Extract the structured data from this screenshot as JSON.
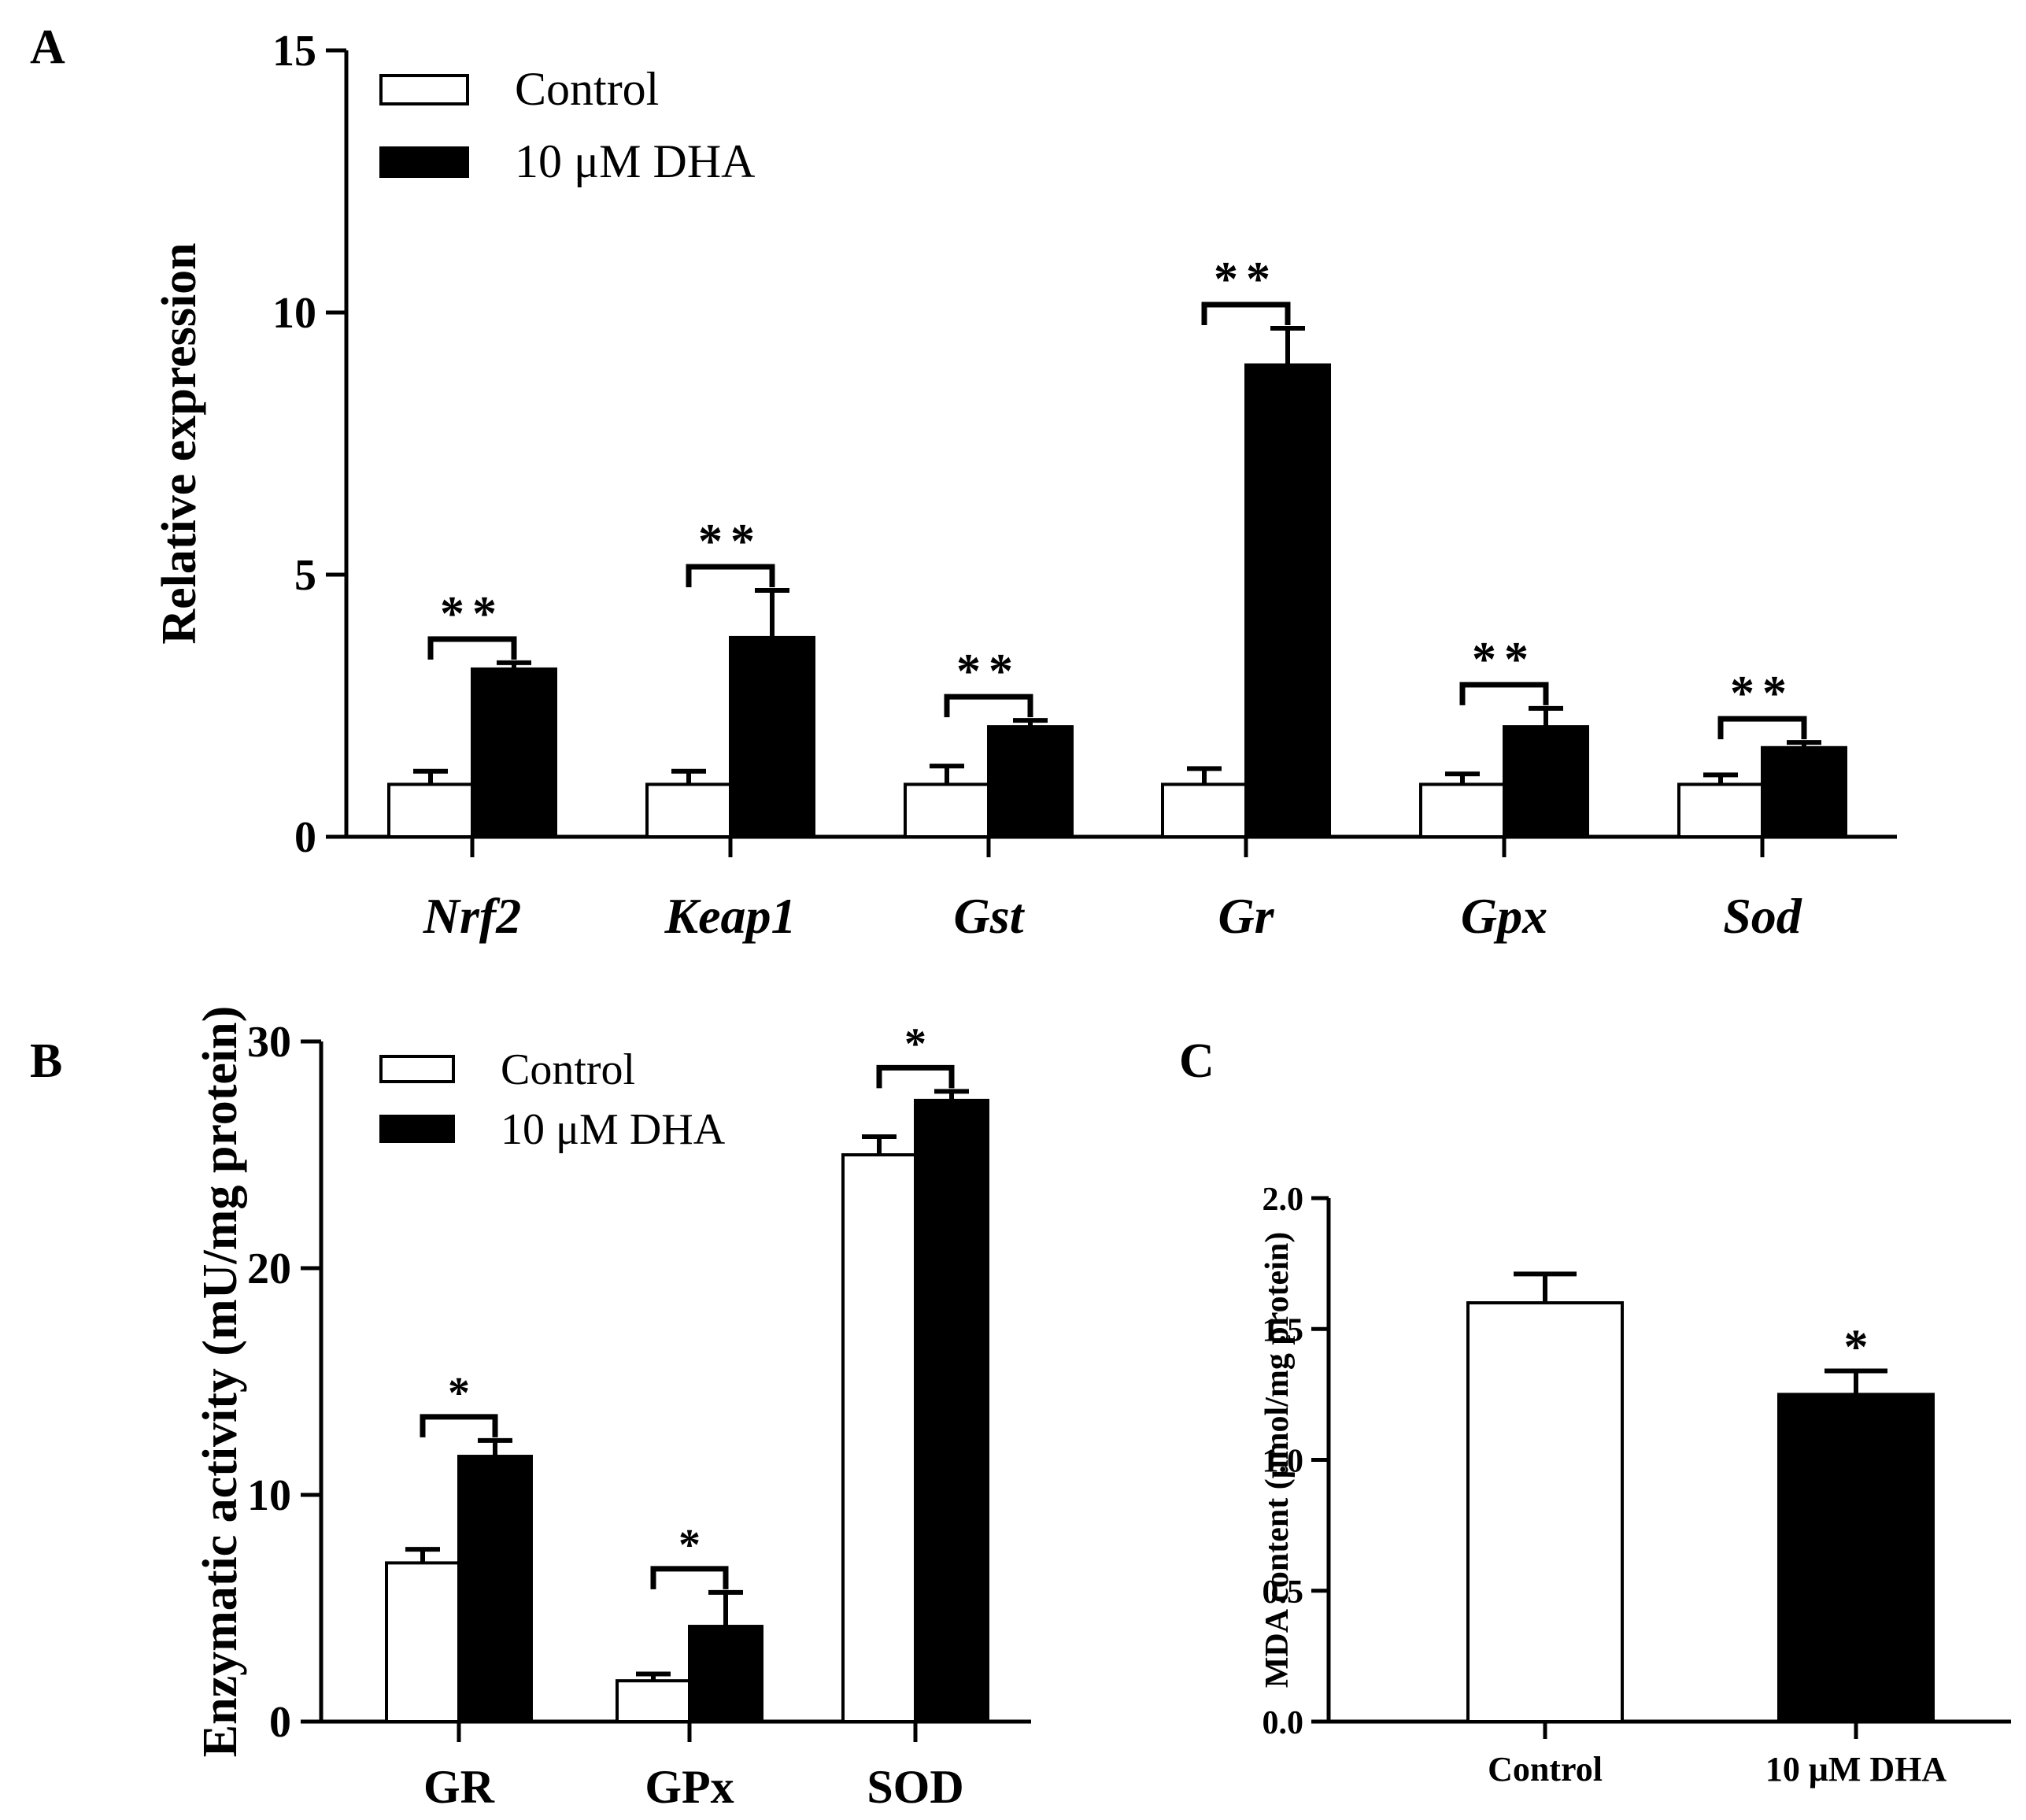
{
  "chart_data": [
    {
      "panel": "A",
      "type": "bar",
      "ylabel": "Relative expression",
      "ylim": [
        0,
        15
      ],
      "yticks": [
        0,
        5,
        10,
        15
      ],
      "categories": [
        "Nrf2",
        "Keap1",
        "Gst",
        "Gr",
        "Gpx",
        "Sod"
      ],
      "series": [
        {
          "name": "Control",
          "color": "#ffffff",
          "values": [
            1.0,
            1.0,
            1.0,
            1.0,
            1.0,
            1.0
          ],
          "errors": [
            0.25,
            0.25,
            0.35,
            0.3,
            0.2,
            0.18
          ]
        },
        {
          "name": "10 μM DHA",
          "color": "#000000",
          "values": [
            3.2,
            3.8,
            2.1,
            9.0,
            2.1,
            1.7
          ],
          "errors": [
            0.12,
            0.9,
            0.12,
            0.7,
            0.35,
            0.1
          ]
        }
      ],
      "significance": [
        "**",
        "**",
        "**",
        "**",
        "**",
        "**"
      ],
      "legend": [
        "Control",
        "10 μM DHA"
      ]
    },
    {
      "panel": "B",
      "type": "bar",
      "ylabel": "Enzymatic activity (mU/mg protein)",
      "ylim": [
        0,
        30
      ],
      "yticks": [
        0,
        10,
        20,
        30
      ],
      "categories": [
        "GR",
        "GPx",
        "SOD"
      ],
      "series": [
        {
          "name": "Control",
          "color": "#ffffff",
          "values": [
            7.0,
            1.8,
            25.0
          ],
          "errors": [
            0.6,
            0.3,
            0.8
          ]
        },
        {
          "name": "10 μM DHA",
          "color": "#000000",
          "values": [
            11.7,
            4.2,
            27.4
          ],
          "errors": [
            0.7,
            1.5,
            0.4
          ]
        }
      ],
      "significance": [
        "*",
        "*",
        "*"
      ],
      "legend": [
        "Control",
        "10 μM DHA"
      ]
    },
    {
      "panel": "C",
      "type": "bar",
      "ylabel": "MDA content (μmol/mg protein)",
      "ylim": [
        0,
        2.0
      ],
      "yticks": [
        "0.0",
        "0.5",
        "1.0",
        "1.5",
        "2.0"
      ],
      "categories": [
        "Control",
        "10 μM DHA"
      ],
      "values": [
        1.6,
        1.25
      ],
      "errors": [
        0.11,
        0.09
      ],
      "colors": [
        "#ffffff",
        "#000000"
      ],
      "significance": [
        "",
        "*"
      ]
    }
  ]
}
